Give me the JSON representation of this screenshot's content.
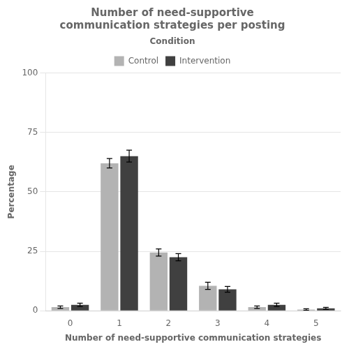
{
  "chart_data": {
    "type": "bar",
    "title": "Number of need-supportive\ncommunication strategies per posting",
    "xlabel": "Number of need-supportive communication strategies",
    "ylabel": "Percentage",
    "categories": [
      0,
      1,
      2,
      3,
      4,
      5
    ],
    "series": [
      {
        "name": "Control",
        "color": "#b3b3b3",
        "values": [
          1.5,
          62.0,
          24.5,
          10.5,
          1.5,
          0.5
        ],
        "errors": [
          0.5,
          2.0,
          1.5,
          1.5,
          0.5,
          0.3
        ]
      },
      {
        "name": "Intervention",
        "color": "#404040",
        "values": [
          2.5,
          65.0,
          22.5,
          9.0,
          2.5,
          1.0
        ],
        "errors": [
          0.7,
          2.5,
          1.5,
          1.2,
          0.7,
          0.4
        ]
      }
    ],
    "ylim": [
      0,
      100
    ],
    "yticks": [
      0,
      25,
      50,
      75,
      100
    ],
    "grid": true,
    "legend": "top",
    "legend_title": "Condition"
  }
}
